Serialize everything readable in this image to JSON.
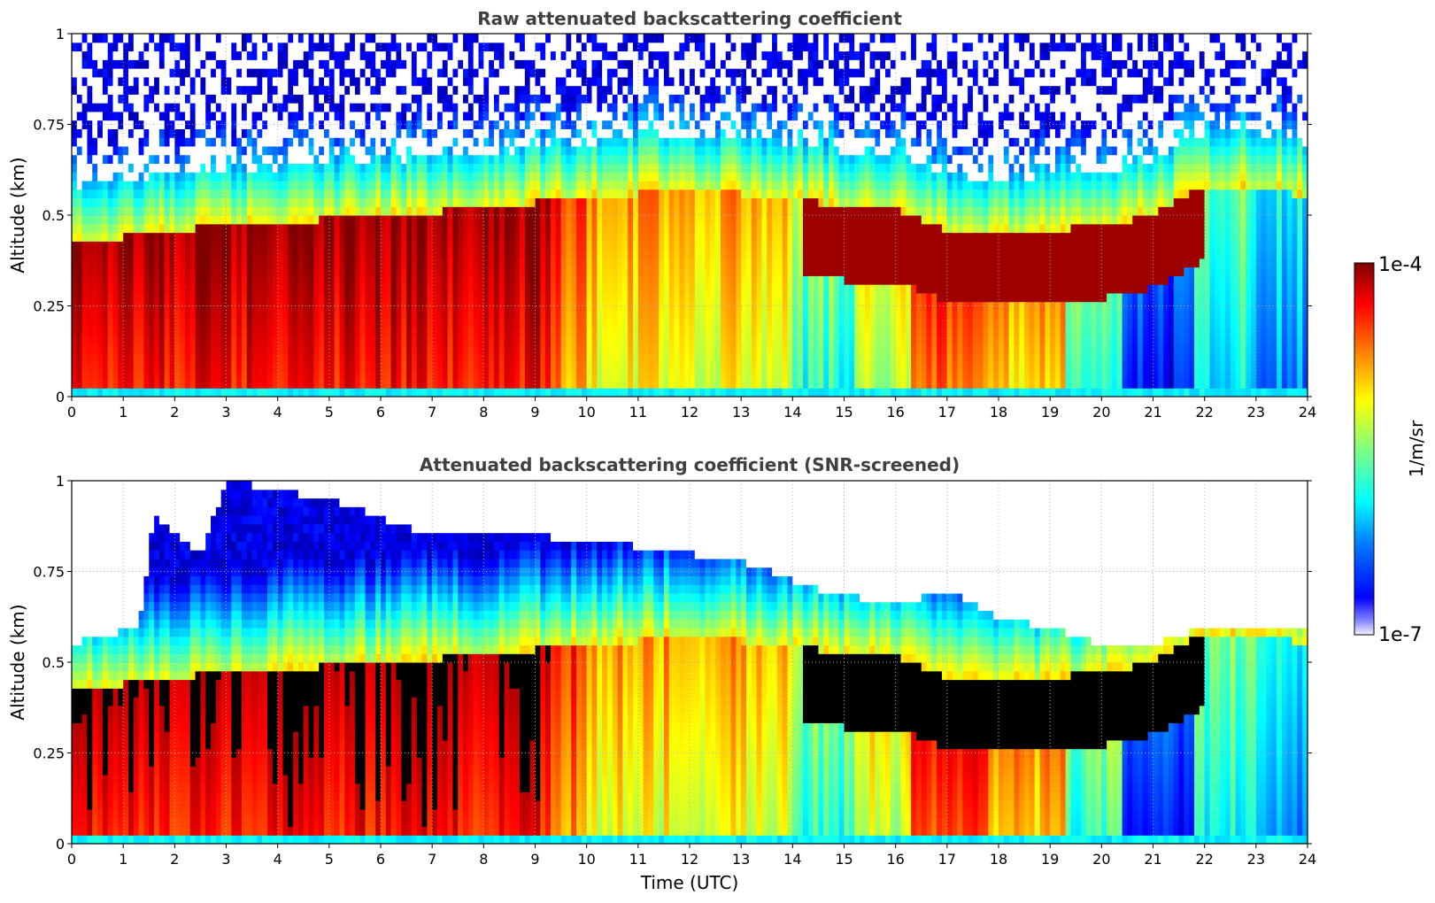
{
  "chart_data": [
    {
      "type": "heatmap",
      "title": "Raw attenuated backscattering coefficient",
      "xlabel": "",
      "ylabel": "Altitude (km)",
      "xlim": [
        0,
        24
      ],
      "ylim": [
        0,
        1
      ],
      "x_ticks": [
        "0",
        "1",
        "2",
        "3",
        "4",
        "5",
        "6",
        "7",
        "8",
        "9",
        "10",
        "11",
        "12",
        "13",
        "14",
        "15",
        "16",
        "17",
        "18",
        "19",
        "20",
        "21",
        "22",
        "23",
        "24"
      ],
      "y_ticks": [
        "0",
        "0.25",
        "0.5",
        "0.75",
        "1"
      ],
      "grid": true,
      "value_scale": "log",
      "value_range": [
        "1e-7",
        "1e-4"
      ],
      "colormap": "jet",
      "screened": false,
      "layer_top_km": [
        {
          "time": 0,
          "top": 0.42
        },
        {
          "time": 2,
          "top": 0.46
        },
        {
          "time": 4,
          "top": 0.48
        },
        {
          "time": 6,
          "top": 0.5
        },
        {
          "time": 8,
          "top": 0.52
        },
        {
          "time": 10,
          "top": 0.55
        },
        {
          "time": 12,
          "top": 0.57
        },
        {
          "time": 14,
          "top": 0.55
        },
        {
          "time": 15,
          "top": 0.52
        },
        {
          "time": 16,
          "top": 0.52
        },
        {
          "time": 17,
          "top": 0.46
        },
        {
          "time": 18,
          "top": 0.45
        },
        {
          "time": 20,
          "top": 0.47
        },
        {
          "time": 21,
          "top": 0.5
        },
        {
          "time": 22,
          "top": 0.58
        },
        {
          "time": 23,
          "top": 0.58
        },
        {
          "time": 24,
          "top": 0.55
        }
      ]
    },
    {
      "type": "heatmap",
      "title": "Attenuated backscattering coefficient (SNR-screened)",
      "xlabel": "Time (UTC)",
      "ylabel": "Altitude (km)",
      "xlim": [
        0,
        24
      ],
      "ylim": [
        0,
        1
      ],
      "x_ticks": [
        "0",
        "1",
        "2",
        "3",
        "4",
        "5",
        "6",
        "7",
        "8",
        "9",
        "10",
        "11",
        "12",
        "13",
        "14",
        "15",
        "16",
        "17",
        "18",
        "19",
        "20",
        "21",
        "22",
        "23",
        "24"
      ],
      "y_ticks": [
        "0",
        "0.25",
        "0.5",
        "0.75",
        "1"
      ],
      "grid": true,
      "value_scale": "log",
      "value_range": [
        "1e-7",
        "1e-4"
      ],
      "colormap": "jet",
      "screened": true,
      "signal_top_km": [
        {
          "time": 0,
          "top": 0.55
        },
        {
          "time": 1.3,
          "top": 0.6
        },
        {
          "time": 1.6,
          "top": 0.9
        },
        {
          "time": 2.5,
          "top": 0.8
        },
        {
          "time": 3,
          "top": 1.0
        },
        {
          "time": 5,
          "top": 0.95
        },
        {
          "time": 7,
          "top": 0.85
        },
        {
          "time": 9,
          "top": 0.85
        },
        {
          "time": 11,
          "top": 0.82
        },
        {
          "time": 13,
          "top": 0.78
        },
        {
          "time": 14.5,
          "top": 0.7
        },
        {
          "time": 16,
          "top": 0.66
        },
        {
          "time": 17,
          "top": 0.7
        },
        {
          "time": 18,
          "top": 0.62
        },
        {
          "time": 19,
          "top": 0.6
        },
        {
          "time": 20,
          "top": 0.55
        },
        {
          "time": 21,
          "top": 0.55
        },
        {
          "time": 22,
          "top": 0.6
        },
        {
          "time": 23,
          "top": 0.6
        },
        {
          "time": 24,
          "top": 0.6
        }
      ]
    }
  ],
  "colorbar": {
    "label": "1/m/sr",
    "max_label": "1e-4",
    "min_label": "1e-7"
  }
}
